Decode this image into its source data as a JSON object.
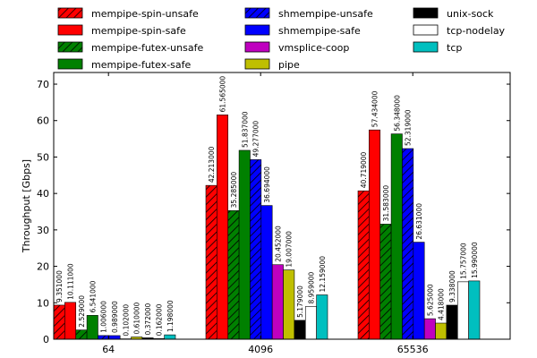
{
  "chart_data": {
    "type": "bar",
    "y_label": "Throughput [Gbps]",
    "categories": [
      "64",
      "4096",
      "65536"
    ],
    "ylim": [
      0,
      73.2
    ],
    "yticks": [
      0,
      10,
      20,
      30,
      40,
      50,
      60,
      70
    ],
    "grid": false,
    "legend": "top",
    "series": [
      {
        "name": "mempipe-spin-unsafe",
        "color": "#ff0000",
        "hatch": true,
        "values": [
          9.351,
          42.213,
          40.719
        ],
        "value_labels": [
          "9.351000",
          "42.213000",
          "40.719000"
        ]
      },
      {
        "name": "mempipe-spin-safe",
        "color": "#ff0000",
        "hatch": false,
        "values": [
          10.111,
          61.565,
          57.434
        ],
        "value_labels": [
          "10.111000",
          "61.565000",
          "57.434000"
        ]
      },
      {
        "name": "mempipe-futex-unsafe",
        "color": "#008000",
        "hatch": true,
        "values": [
          2.529,
          35.285,
          31.583
        ],
        "value_labels": [
          "2.529000",
          "35.285000",
          "31.583000"
        ]
      },
      {
        "name": "mempipe-futex-safe",
        "color": "#008000",
        "hatch": false,
        "values": [
          6.541,
          51.837,
          56.348
        ],
        "value_labels": [
          "6.541000",
          "51.837000",
          "56.348000"
        ]
      },
      {
        "name": "shmempipe-unsafe",
        "color": "#0000ff",
        "hatch": true,
        "values": [
          1.006,
          49.277,
          52.319
        ],
        "value_labels": [
          "1.006000",
          "49.277000",
          "52.319000"
        ]
      },
      {
        "name": "shmempipe-safe",
        "color": "#0000ff",
        "hatch": false,
        "values": [
          0.989,
          36.694,
          26.631
        ],
        "value_labels": [
          "0.989000",
          "36.694000",
          "26.631000"
        ]
      },
      {
        "name": "vmsplice-coop",
        "color": "#bf00bf",
        "hatch": false,
        "values": [
          0.102,
          20.452,
          5.625
        ],
        "value_labels": [
          "0.102000",
          "20.452000",
          "5.625000"
        ]
      },
      {
        "name": "pipe",
        "color": "#bfbf00",
        "hatch": false,
        "values": [
          0.61,
          19.007,
          4.418
        ],
        "value_labels": [
          "0.610000",
          "19.007000",
          "4.418000"
        ]
      },
      {
        "name": "unix-sock",
        "color": "#000000",
        "hatch": false,
        "values": [
          0.372,
          5.179,
          9.338
        ],
        "value_labels": [
          "0.372000",
          "5.179000",
          "9.338000"
        ]
      },
      {
        "name": "tcp-nodelay",
        "color": "#ffffff",
        "hatch": false,
        "values": [
          0.162,
          8.959,
          15.757
        ],
        "value_labels": [
          "0.162000",
          "8.959000",
          "15.757000"
        ]
      },
      {
        "name": "tcp",
        "color": "#00bfbf",
        "hatch": false,
        "values": [
          1.198,
          12.159,
          15.99
        ],
        "value_labels": [
          "1.198000",
          "12.159000",
          "15.990000"
        ]
      }
    ]
  }
}
